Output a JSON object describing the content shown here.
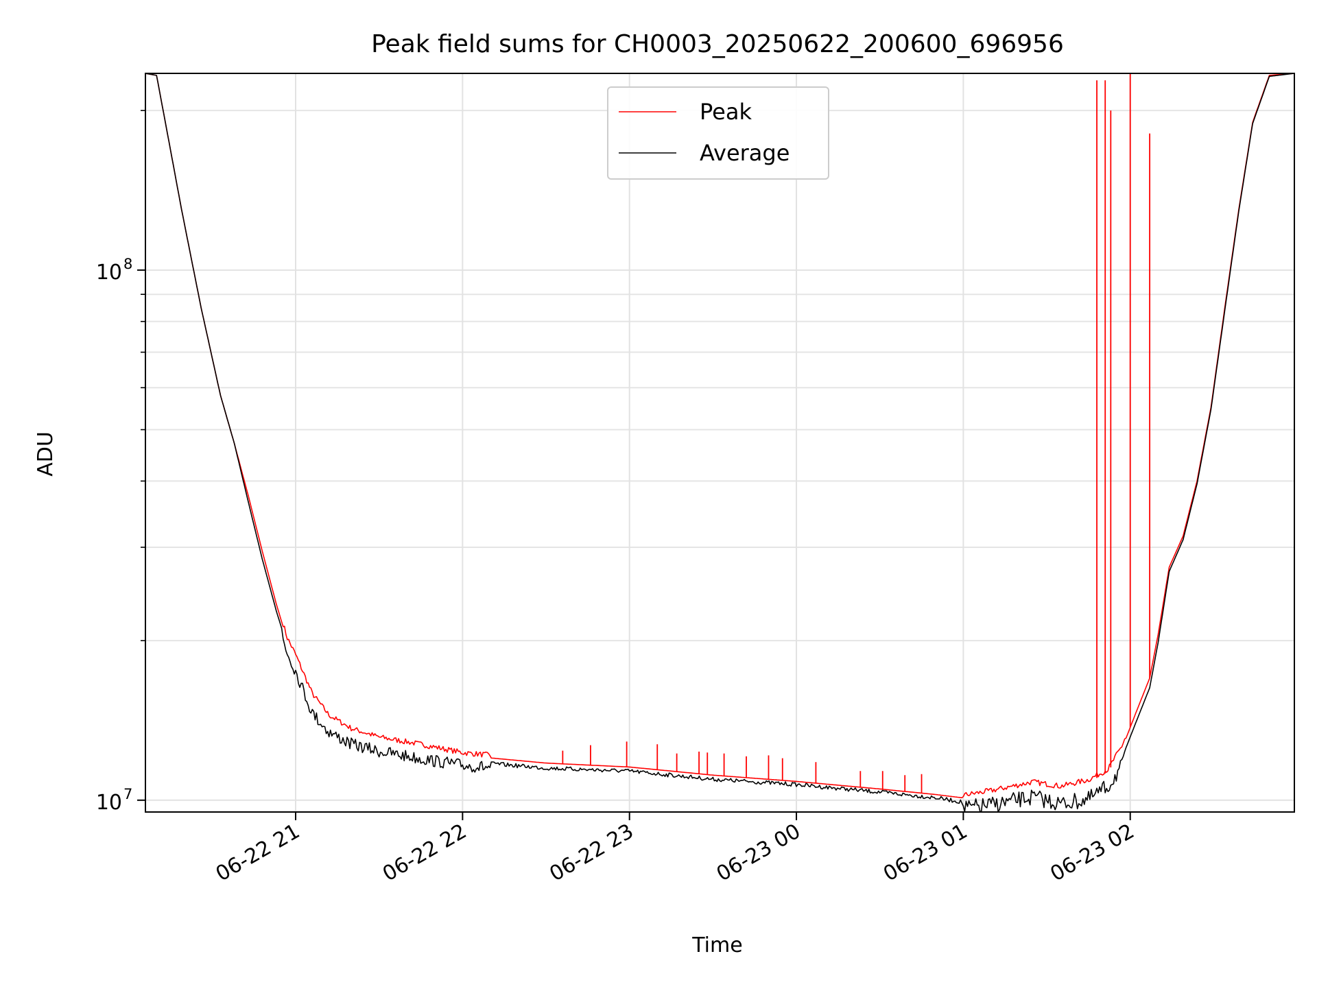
{
  "chart_data": {
    "type": "line",
    "title": "Peak field sums for CH0003_20250622_200600_696956",
    "xlabel": "Time",
    "ylabel": "ADU",
    "yscale": "log",
    "xlim": [
      "2025-06-22 20:06",
      "2025-06-23 02:59"
    ],
    "ylim": [
      9500000,
      235000000
    ],
    "grid": true,
    "legend_position": "top-center",
    "x_ticks": [
      {
        "t": "2025-06-22 21:00",
        "label": "06-22 21"
      },
      {
        "t": "2025-06-22 22:00",
        "label": "06-22 22"
      },
      {
        "t": "2025-06-22 23:00",
        "label": "06-22 23"
      },
      {
        "t": "2025-06-23 00:00",
        "label": "06-23 00"
      },
      {
        "t": "2025-06-23 01:00",
        "label": "06-23 01"
      },
      {
        "t": "2025-06-23 02:00",
        "label": "06-23 02"
      }
    ],
    "y_ticks": [
      {
        "value": 10000000,
        "base": "10",
        "exp": "7"
      },
      {
        "value": 100000000,
        "base": "10",
        "exp": "8"
      }
    ],
    "series": [
      {
        "name": "Peak",
        "color": "#ff0000",
        "points": [
          [
            "2025-06-22 20:06",
            235000000
          ],
          [
            "2025-06-22 20:10",
            233000000
          ],
          [
            "2025-06-22 20:14",
            180000000
          ],
          [
            "2025-06-22 20:19",
            130000000
          ],
          [
            "2025-06-22 20:26",
            85000000
          ],
          [
            "2025-06-22 20:33",
            58000000
          ],
          [
            "2025-06-22 20:38",
            47000000
          ],
          [
            "2025-06-22 20:43",
            37500000
          ],
          [
            "2025-06-22 20:48",
            29500000
          ],
          [
            "2025-06-22 20:53",
            23500000
          ],
          [
            "2025-06-22 20:57",
            20000000
          ],
          [
            "2025-06-22 21:00",
            18600000
          ],
          [
            "2025-06-22 21:06",
            15700000
          ],
          [
            "2025-06-22 21:12",
            14300000
          ],
          [
            "2025-06-22 21:20",
            13500000
          ],
          [
            "2025-06-22 21:30",
            13000000
          ],
          [
            "2025-06-22 21:45",
            12600000
          ],
          [
            "2025-06-22 22:00",
            12150000
          ],
          [
            "2025-06-22 22:30",
            11750000
          ],
          [
            "2025-06-22 23:00",
            11550000
          ],
          [
            "2025-06-22 23:30",
            11150000
          ],
          [
            "2025-06-23 00:00",
            10850000
          ],
          [
            "2025-06-23 00:30",
            10500000
          ],
          [
            "2025-06-23 00:50",
            10250000
          ],
          [
            "2025-06-23 01:00",
            10100000
          ],
          [
            "2025-06-23 01:10",
            10300000
          ],
          [
            "2025-06-23 01:25",
            10700000
          ],
          [
            "2025-06-23 01:35",
            10500000
          ],
          [
            "2025-06-23 01:45",
            10800000
          ],
          [
            "2025-06-23 01:52",
            11300000
          ],
          [
            "2025-06-23 01:57",
            12500000
          ],
          [
            "2025-06-23 02:02",
            14600000
          ],
          [
            "2025-06-23 02:07",
            17000000
          ],
          [
            "2025-06-23 02:10",
            20500000
          ],
          [
            "2025-06-23 02:14",
            27500000
          ],
          [
            "2025-06-23 02:19",
            31500000
          ],
          [
            "2025-06-23 02:24",
            40000000
          ],
          [
            "2025-06-23 02:29",
            55000000
          ],
          [
            "2025-06-23 02:34",
            85000000
          ],
          [
            "2025-06-23 02:39",
            130000000
          ],
          [
            "2025-06-23 02:44",
            190000000
          ],
          [
            "2025-06-23 02:50",
            233000000
          ],
          [
            "2025-06-23 02:59",
            235000000
          ]
        ],
        "spikes": [
          [
            "2025-06-22 22:36",
            12400000
          ],
          [
            "2025-06-22 22:46",
            12700000
          ],
          [
            "2025-06-22 22:59",
            12900000
          ],
          [
            "2025-06-22 23:10",
            12750000
          ],
          [
            "2025-06-22 23:17",
            12250000
          ],
          [
            "2025-06-22 23:25",
            12350000
          ],
          [
            "2025-06-22 23:28",
            12300000
          ],
          [
            "2025-06-22 23:34",
            12250000
          ],
          [
            "2025-06-22 23:42",
            12100000
          ],
          [
            "2025-06-22 23:50",
            12150000
          ],
          [
            "2025-06-22 23:55",
            12000000
          ],
          [
            "2025-06-23 00:07",
            11800000
          ],
          [
            "2025-06-23 00:23",
            11350000
          ],
          [
            "2025-06-23 00:31",
            11350000
          ],
          [
            "2025-06-23 00:39",
            11150000
          ],
          [
            "2025-06-23 00:45",
            11200000
          ],
          [
            "2025-06-23 01:48",
            228000000
          ],
          [
            "2025-06-23 01:51",
            228000000
          ],
          [
            "2025-06-23 01:53",
            200000000
          ],
          [
            "2025-06-23 02:00",
            235000000
          ],
          [
            "2025-06-23 02:07",
            181000000
          ]
        ]
      },
      {
        "name": "Average",
        "color": "#000000",
        "points": [
          [
            "2025-06-22 20:06",
            235000000
          ],
          [
            "2025-06-22 20:10",
            233000000
          ],
          [
            "2025-06-22 20:14",
            180000000
          ],
          [
            "2025-06-22 20:19",
            130000000
          ],
          [
            "2025-06-22 20:26",
            85000000
          ],
          [
            "2025-06-22 20:33",
            58000000
          ],
          [
            "2025-06-22 20:38",
            47000000
          ],
          [
            "2025-06-22 20:43",
            36500000
          ],
          [
            "2025-06-22 20:48",
            28500000
          ],
          [
            "2025-06-22 20:53",
            22800000
          ],
          [
            "2025-06-22 20:57",
            19500000
          ],
          [
            "2025-06-22 21:00",
            18000000
          ],
          [
            "2025-06-22 21:06",
            15000000
          ],
          [
            "2025-06-22 21:12",
            13800000
          ],
          [
            "2025-06-22 21:20",
            13100000
          ],
          [
            "2025-06-22 21:30",
            12700000
          ],
          [
            "2025-06-22 21:45",
            12300000
          ],
          [
            "2025-06-22 22:00",
            11950000
          ],
          [
            "2025-06-22 22:30",
            11600000
          ],
          [
            "2025-06-22 23:00",
            11450000
          ],
          [
            "2025-06-22 23:30",
            11050000
          ],
          [
            "2025-06-23 00:00",
            10800000
          ],
          [
            "2025-06-23 00:30",
            10450000
          ],
          [
            "2025-06-23 00:50",
            10200000
          ],
          [
            "2025-06-23 01:00",
            10000000
          ],
          [
            "2025-06-23 01:10",
            10150000
          ],
          [
            "2025-06-23 01:25",
            10500000
          ],
          [
            "2025-06-23 01:35",
            10200000
          ],
          [
            "2025-06-23 01:45",
            10400000
          ],
          [
            "2025-06-23 01:52",
            11000000
          ],
          [
            "2025-06-23 01:57",
            12000000
          ],
          [
            "2025-06-23 02:02",
            14000000
          ],
          [
            "2025-06-23 02:07",
            16300000
          ],
          [
            "2025-06-23 02:10",
            19800000
          ],
          [
            "2025-06-23 02:14",
            27000000
          ],
          [
            "2025-06-23 02:19",
            31000000
          ],
          [
            "2025-06-23 02:24",
            39500000
          ],
          [
            "2025-06-23 02:29",
            54500000
          ],
          [
            "2025-06-23 02:34",
            84000000
          ],
          [
            "2025-06-23 02:39",
            129000000
          ],
          [
            "2025-06-23 02:44",
            189000000
          ],
          [
            "2025-06-23 02:50",
            232000000
          ],
          [
            "2025-06-23 02:59",
            235000000
          ]
        ]
      }
    ]
  }
}
